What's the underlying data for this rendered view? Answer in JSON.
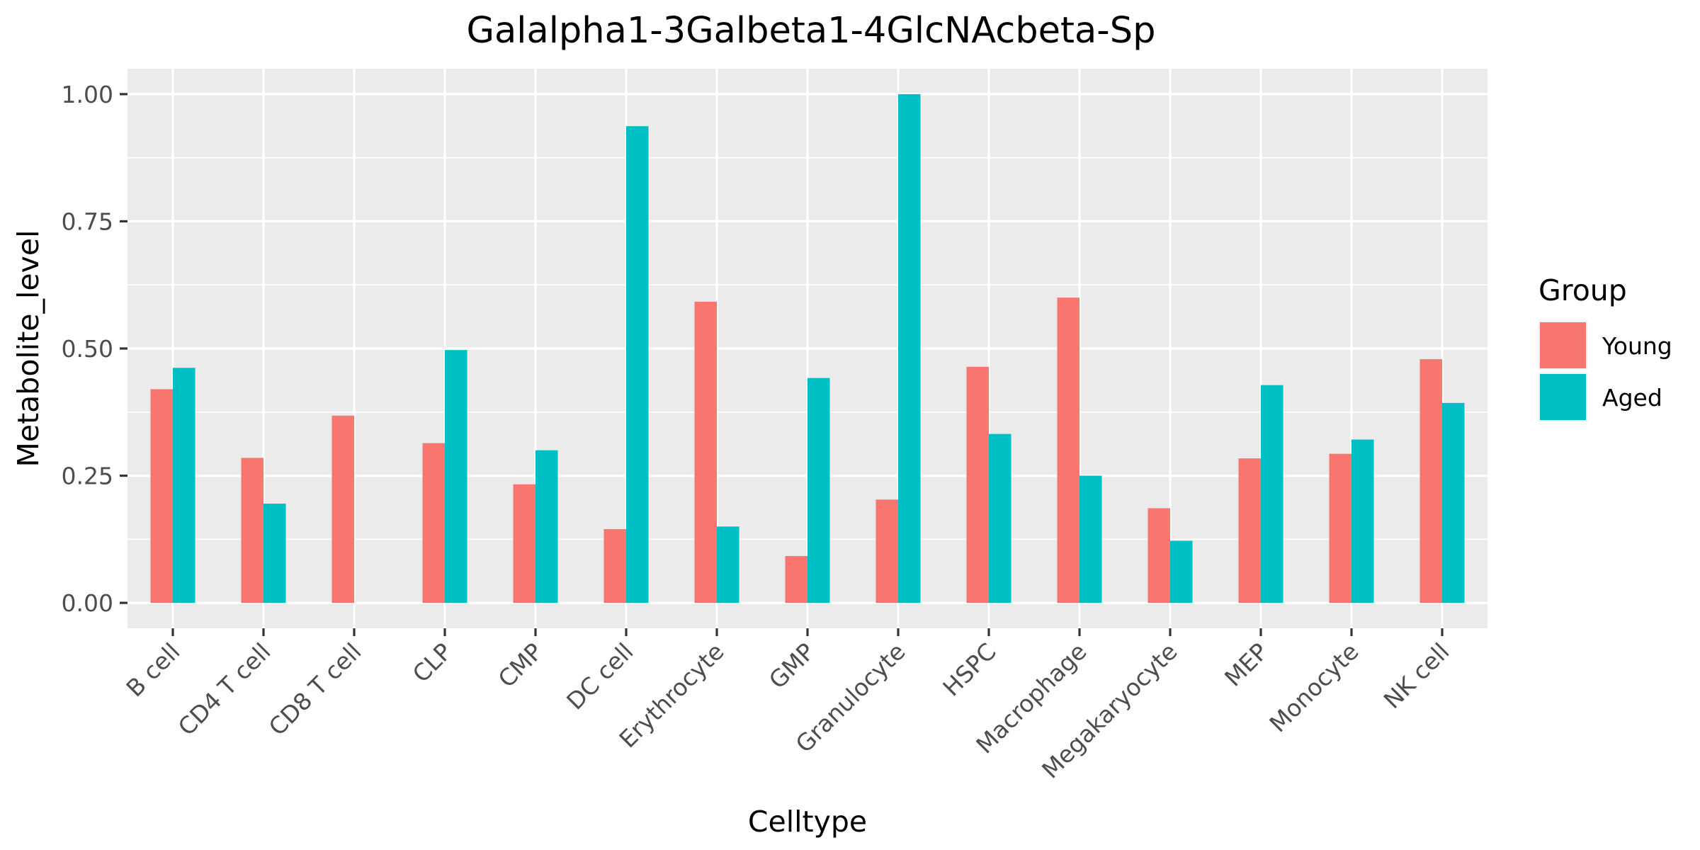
{
  "chart_data": {
    "type": "bar",
    "title": "Galalpha1-3Galbeta1-4GlcNAcbeta-Sp",
    "xlabel": "Celltype",
    "ylabel": "Metabolite_level",
    "ylim": [
      -0.05,
      1.05
    ],
    "yticks": [
      0.0,
      0.25,
      0.5,
      0.75,
      1.0
    ],
    "ytick_labels": [
      "0.00",
      "0.25",
      "0.50",
      "0.75",
      "1.00"
    ],
    "grid": true,
    "legend_position": "right",
    "legend_title": "Group",
    "categories": [
      "B cell",
      "CD4 T cell",
      "CD8 T cell",
      "CLP",
      "CMP",
      "DC cell",
      "Erythrocyte",
      "GMP",
      "Granulocyte",
      "HSPC",
      "Macrophage",
      "Megakaryocyte",
      "MEP",
      "Monocyte",
      "NK cell"
    ],
    "series": [
      {
        "name": "Young",
        "color": "#F8766D",
        "values": [
          0.42,
          0.285,
          0.368,
          0.314,
          0.233,
          0.145,
          0.592,
          0.092,
          0.203,
          0.464,
          0.6,
          0.186,
          0.284,
          0.293,
          0.479
        ]
      },
      {
        "name": "Aged",
        "color": "#00BFC4",
        "values": [
          0.462,
          0.195,
          null,
          0.497,
          0.3,
          0.937,
          0.15,
          0.442,
          1.0,
          0.332,
          0.25,
          0.122,
          0.428,
          0.321,
          0.393
        ]
      }
    ]
  }
}
